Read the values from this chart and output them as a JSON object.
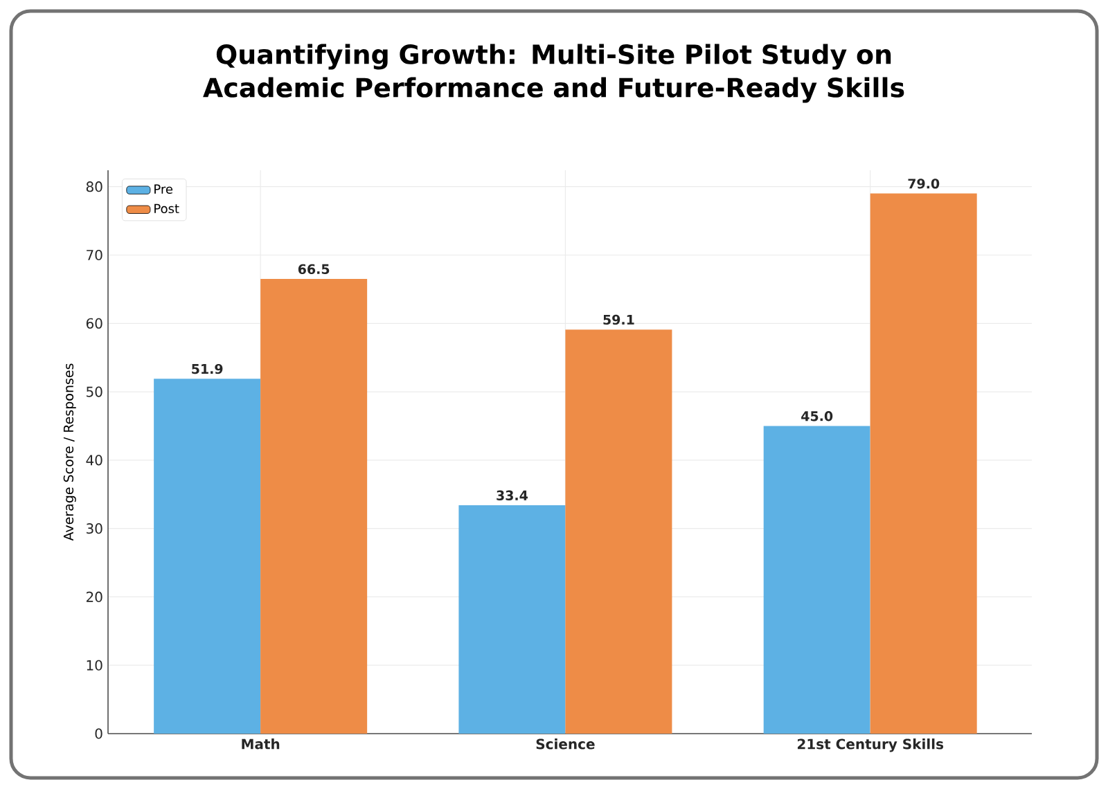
{
  "chart_data": {
    "type": "bar",
    "title": "Quantifying Growth: Multi-Site Pilot Study on Academic Performance and Future-Ready Skills",
    "ylabel": "Average Score / Responses",
    "categories": [
      "Math",
      "Science",
      "21st Century Skills"
    ],
    "series": [
      {
        "name": "Pre",
        "color": "#5db1e4",
        "values": [
          51.9,
          33.4,
          45.0
        ],
        "value_labels": [
          "51.9",
          "33.4",
          "45.0"
        ]
      },
      {
        "name": "Post",
        "color": "#ee8c47",
        "values": [
          66.5,
          59.1,
          79.0
        ],
        "value_labels": [
          "66.5",
          "59.1",
          "79.0"
        ]
      }
    ],
    "ylim": [
      0,
      82.4
    ],
    "yticks": [
      0,
      10,
      20,
      30,
      40,
      50,
      60,
      70,
      80
    ],
    "grid": true,
    "legend": "top left"
  }
}
